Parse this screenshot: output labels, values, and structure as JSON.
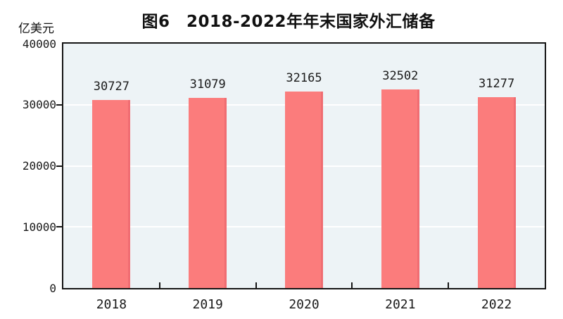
{
  "figure": {
    "title": "图6　2018-2022年年末国家外汇储备",
    "unit_label": "亿美元"
  },
  "chart_data": {
    "type": "bar",
    "title": "图6　2018-2022年年末国家外汇储备",
    "ylabel": "亿美元",
    "xlabel": "",
    "categories": [
      "2018",
      "2019",
      "2020",
      "2021",
      "2022"
    ],
    "values": [
      30727,
      31079,
      32165,
      32502,
      31277
    ],
    "value_labels": [
      "30727",
      "31079",
      "32165",
      "32502",
      "31277"
    ],
    "ylim": [
      0,
      40000
    ],
    "yticks": [
      0,
      10000,
      20000,
      30000,
      40000
    ],
    "grid": true,
    "legend": false,
    "colors": {
      "bar_fill": "#fb7c7c",
      "bar_edge": "#f06d72",
      "plot_background": "#edf3f6",
      "gridline": "#ffffff",
      "axis": "#151515",
      "text": "#1a1a1a"
    }
  }
}
